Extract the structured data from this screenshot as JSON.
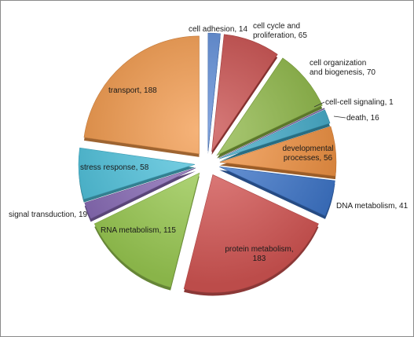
{
  "chart_data": {
    "type": "pie",
    "title": "",
    "slices": [
      {
        "name": "cell adhesion",
        "value": 14,
        "color": "#5b8ad6",
        "label_lines": [
          "cell adhesion, 14"
        ]
      },
      {
        "name": "cell cycle and proliferation",
        "value": 65,
        "color": "#c74b4a",
        "label_lines": [
          "cell cycle and",
          "proliferation, 65"
        ]
      },
      {
        "name": "cell organization and biogenesis",
        "value": 70,
        "color": "#8cb644",
        "label_lines": [
          "cell organization",
          "and biogenesis, 70"
        ]
      },
      {
        "name": "cell-cell signaling",
        "value": 1,
        "color": "#7c61a6",
        "label_lines": [
          "cell-cell signaling, 1"
        ]
      },
      {
        "name": "death",
        "value": 16,
        "color": "#3fa8c7",
        "label_lines": [
          "death, 16"
        ]
      },
      {
        "name": "developmental processes",
        "value": 56,
        "color": "#ef8f3e",
        "label_lines": [
          "developmental",
          "processes, 56"
        ]
      },
      {
        "name": "DNA metabolism",
        "value": 41,
        "color": "#3b74c9",
        "label_lines": [
          "DNA metabolism, 41"
        ]
      },
      {
        "name": "protein metabolism",
        "value": 183,
        "color": "#d65654",
        "label_lines": [
          "protein metabolism,",
          "183"
        ]
      },
      {
        "name": "RNA metabolism",
        "value": 115,
        "color": "#9ccc53",
        "label_lines": [
          "RNA metabolism, 115"
        ]
      },
      {
        "name": "signal transduction",
        "value": 19,
        "color": "#8a6cb8",
        "label_lines": [
          "signal transduction, 19"
        ]
      },
      {
        "name": "stress response",
        "value": 58,
        "color": "#4fc3de",
        "label_lines": [
          "stress response, 58"
        ]
      },
      {
        "name": "transport",
        "value": 188,
        "color": "#f39a4c",
        "label_lines": [
          "transport, 188"
        ]
      }
    ],
    "start_angle_deg": 0,
    "direction": "clockwise",
    "exploded": true,
    "legend": "none",
    "data_labels": "name, value"
  }
}
